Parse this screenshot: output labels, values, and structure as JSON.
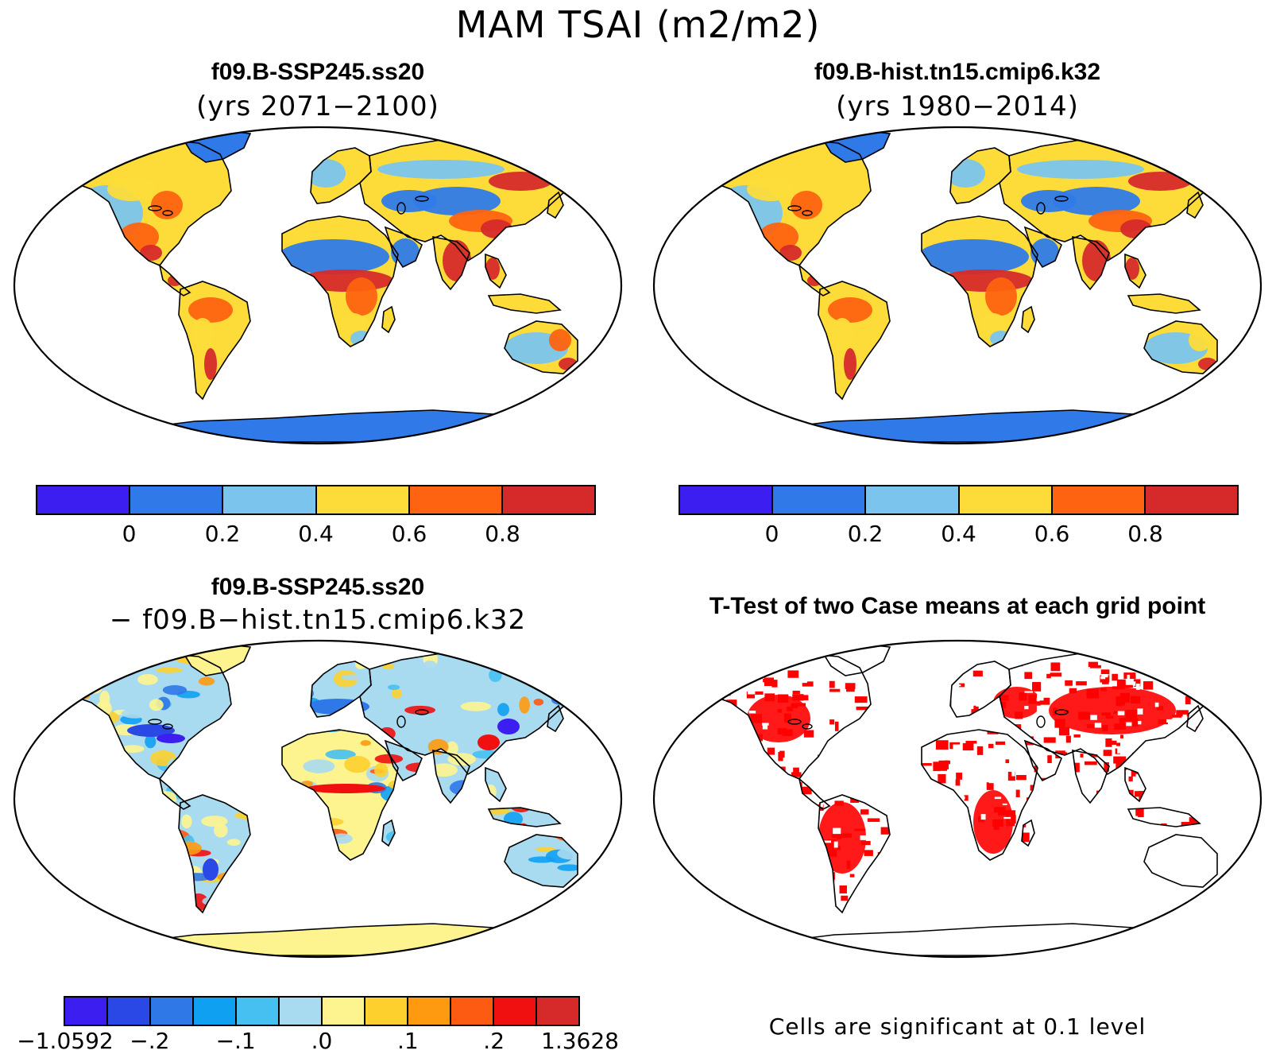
{
  "title": "MAM TSAI (m2/m2)",
  "panels": {
    "top_left": {
      "title": "f09.B-SSP245.ss20",
      "subtitle": "(yrs 2071−2100)"
    },
    "top_right": {
      "title": "f09.B-hist.tn15.cmip6.k32",
      "subtitle": "(yrs 1980−2014)"
    },
    "bottom_left": {
      "title": "f09.B-SSP245.ss20",
      "subtitle": "− f09.B−hist.tn15.cmip6.k32"
    },
    "bottom_right": {
      "title": "T-Test of two Case means at each grid point",
      "note": "Cells are significant at 0.1 level"
    }
  },
  "colorbar_main": {
    "colors": [
      "#3c1ef0",
      "#2f7ae8",
      "#7ac4ee",
      "#fddc3a",
      "#fd6310",
      "#d62a2a"
    ],
    "ticks": [
      "0",
      "0.2",
      "0.4",
      "0.6",
      "0.8"
    ]
  },
  "colorbar_diff": {
    "colors": [
      "#3c1ef0",
      "#2a48e6",
      "#2e78e8",
      "#10a0f2",
      "#46c0f0",
      "#a8daf0",
      "#fdf490",
      "#fdd02e",
      "#fd9a10",
      "#fd5a12",
      "#f01010",
      "#d62a2a"
    ],
    "ticks": [
      "−1.0592",
      "−.2",
      "−.1",
      ".0",
      ".1",
      ".2",
      "1.3628"
    ]
  },
  "ttest_color": "#ff0000"
}
